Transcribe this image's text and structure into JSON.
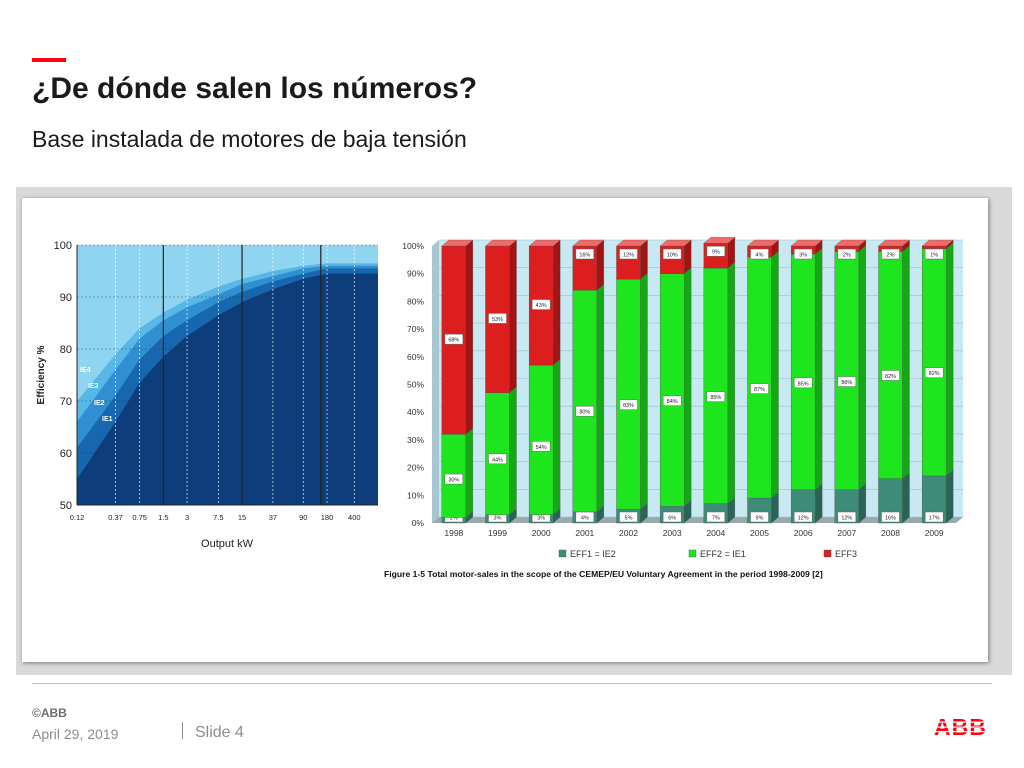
{
  "slide": {
    "title": "¿De dónde salen los números?",
    "subtitle": "Base instalada de motores de baja tensión"
  },
  "footer": {
    "copyright": "©ABB",
    "date": "April 29, 2019",
    "slide_label": "Slide 4",
    "logo_text": "ABB"
  },
  "colors": {
    "accent": "#ff000f",
    "eff1": "#3c8c78",
    "eff2": "#1ee61e",
    "eff3": "#dc1e1e",
    "abb_red": "#ff000f"
  },
  "chart_data": [
    {
      "type": "area",
      "ylabel": "Efficiency %",
      "xlabel": "Output kW",
      "x_ticks": [
        "0.12",
        "0.37",
        "0.75",
        "1.5",
        "3",
        "7.5",
        "15",
        "37",
        "90",
        "180",
        "400"
      ],
      "y_ticks": [
        50,
        60,
        70,
        80,
        90,
        100
      ],
      "ylim": [
        50,
        100
      ],
      "x_scale": "log",
      "series_labels": [
        "IE4",
        "IE3",
        "IE2",
        "IE1"
      ],
      "series": [
        {
          "label": "IE4",
          "x": [
            0.12,
            0.37,
            0.75,
            1.5,
            3,
            7.5,
            15,
            37,
            90,
            180,
            400
          ],
          "y": [
            70,
            79,
            84,
            87,
            89.5,
            92,
            93.5,
            95,
            96,
            96.5,
            96.5
          ]
        },
        {
          "label": "IE3",
          "x": [
            0.12,
            0.37,
            0.75,
            1.5,
            3,
            7.5,
            15,
            37,
            90,
            180,
            400
          ],
          "y": [
            66,
            76,
            82,
            85.5,
            88,
            90.5,
            92.5,
            94,
            95.5,
            96,
            96
          ]
        },
        {
          "label": "IE2",
          "x": [
            0.12,
            0.37,
            0.75,
            1.5,
            3,
            7.5,
            15,
            37,
            90,
            180,
            400
          ],
          "y": [
            61,
            71,
            78,
            82.5,
            85.5,
            89,
            91,
            93,
            94.5,
            95.5,
            95.5
          ]
        },
        {
          "label": "IE1",
          "x": [
            0.12,
            0.37,
            0.75,
            1.5,
            3,
            7.5,
            15,
            37,
            90,
            180,
            400
          ],
          "y": [
            55,
            66,
            73.5,
            78.5,
            82.5,
            86.5,
            89,
            91.5,
            93.5,
            94.5,
            94.5
          ]
        }
      ]
    },
    {
      "type": "bar",
      "stacked": true,
      "categories": [
        "1998",
        "1999",
        "2000",
        "2001",
        "2002",
        "2003",
        "2004",
        "2005",
        "2006",
        "2007",
        "2008",
        "2009"
      ],
      "y_ticks": [
        "0%",
        "10%",
        "20%",
        "30%",
        "40%",
        "50%",
        "60%",
        "70%",
        "80%",
        "90%",
        "100%"
      ],
      "ylim": [
        0,
        100
      ],
      "series": [
        {
          "name": "EFF1 = IE2",
          "values": [
            2,
            3,
            3,
            4,
            5,
            6,
            7,
            9,
            12,
            12,
            16,
            17
          ]
        },
        {
          "name": "EFF2 = IE1",
          "values": [
            30,
            44,
            54,
            80,
            83,
            84,
            85,
            87,
            85,
            86,
            82,
            82
          ]
        },
        {
          "name": "EFF3",
          "values": [
            68,
            53,
            43,
            16,
            12,
            10,
            9,
            4,
            3,
            2,
            2,
            1
          ]
        }
      ],
      "data_labels": {
        "EFF1 = IE2": [
          "2%",
          "3%",
          "3%",
          "4%",
          "5%",
          "6%",
          "7%",
          "9%",
          "12%",
          "12%",
          "16%",
          "17%"
        ],
        "EFF2 = IE1": [
          "30%",
          "44%",
          "54%",
          "80%",
          "83%",
          "84%",
          "85%",
          "87%",
          "85%",
          "86%",
          "82%",
          "82%"
        ],
        "EFF3": [
          "68%",
          "53%",
          "43%",
          "16%",
          "12%",
          "10%",
          "9%",
          "4%",
          "3%",
          "2%",
          "2%",
          "1%"
        ]
      },
      "caption": "Figure 1-5 Total motor-sales in the scope of the CEMEP/EU Voluntary Agreement in the period 1998-2009 [2]",
      "legend_position": "bottom"
    }
  ]
}
